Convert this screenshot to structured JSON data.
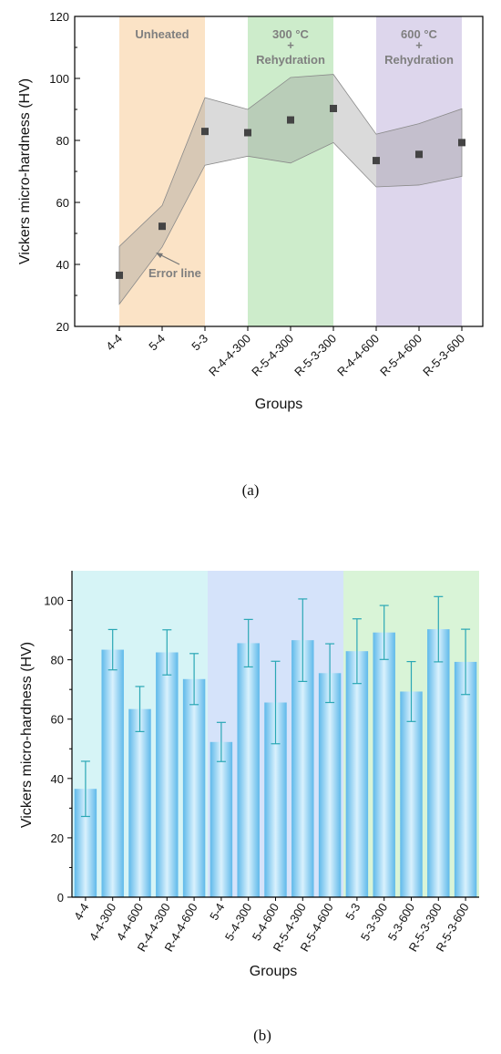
{
  "chart_data": [
    {
      "type": "scatter",
      "xlabel": "Groups",
      "ylabel": "Vickers micro-hardness (HV)",
      "ylim": [
        20,
        120
      ],
      "yticks": [
        20,
        40,
        60,
        80,
        100,
        120
      ],
      "categories": [
        "4-4",
        "5-4",
        "5-3",
        "R-4-4-300",
        "R-5-4-300",
        "R-5-3-300",
        "R-4-4-600",
        "R-5-4-600",
        "R-5-3-600"
      ],
      "values": [
        36.5,
        52.3,
        82.9,
        82.5,
        86.6,
        90.3,
        73.5,
        75.5,
        79.3
      ],
      "error_upper": [
        45.8,
        59.0,
        93.8,
        90.0,
        100.3,
        101.3,
        82.0,
        85.4,
        90.2
      ],
      "error_lower": [
        27.2,
        45.6,
        72.0,
        74.9,
        72.7,
        79.3,
        65.0,
        65.6,
        68.4
      ],
      "bands": [
        {
          "label": "Unheated",
          "color": "#fbe3c6"
        },
        {
          "label": "300 °C\n+\nRehydration",
          "color": "#cdeccb"
        },
        {
          "label": "600 °C\n+\nRehydration",
          "color": "#ddd6ec"
        }
      ],
      "annotation": "Error line",
      "caption": "(a)"
    },
    {
      "type": "bar",
      "xlabel": "Groups",
      "ylabel": "Vickers micro-hardness (HV)",
      "ylim": [
        0,
        110
      ],
      "yticks": [
        0,
        20,
        40,
        60,
        80,
        100
      ],
      "categories": [
        "4-4",
        "4-4-300",
        "4-4-600",
        "R-4-4-300",
        "R-4-4-600",
        "5-4",
        "5-4-300",
        "5-4-600",
        "R-5-4-300",
        "R-5-4-600",
        "5-3",
        "5-3-300",
        "5-3-600",
        "R-5-3-300",
        "R-5-3-600"
      ],
      "values": [
        36.5,
        83.4,
        63.4,
        82.5,
        73.5,
        52.3,
        85.6,
        65.6,
        86.6,
        75.5,
        82.9,
        89.2,
        69.3,
        90.3,
        79.3
      ],
      "errors": [
        9.3,
        6.8,
        7.6,
        7.6,
        8.6,
        6.6,
        8.0,
        13.9,
        13.9,
        9.9,
        10.9,
        9.1,
        10.1,
        11.0,
        11.0
      ],
      "bands": [
        {
          "color": "#d6f4f6"
        },
        {
          "color": "#d5e3fa"
        },
        {
          "color": "#d9f4d7"
        }
      ],
      "bar_color": "#74c5ef",
      "error_color": "#2aa7b5",
      "caption": "(b)"
    }
  ]
}
